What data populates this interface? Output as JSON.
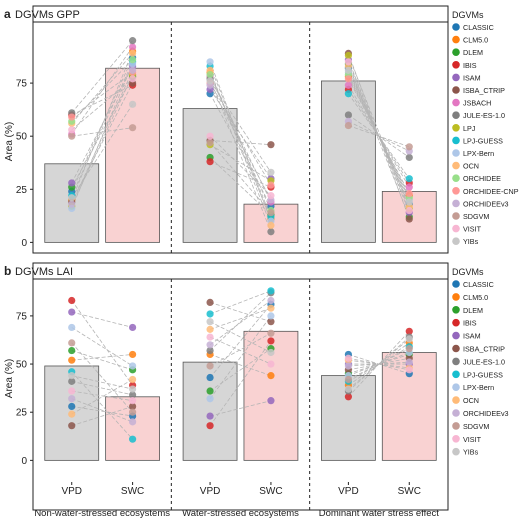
{
  "colors": {
    "vpd_bar": "#d6d6d6",
    "swc_bar": "#f9d2d2",
    "bar_stroke": "#555555",
    "connector": "#b5b5b5"
  },
  "model_colors": {
    "CLASSIC": "#1f77b4",
    "CLM5.0": "#ff7f0e",
    "DLEM": "#2ca02c",
    "IBIS": "#d62728",
    "ISAM": "#9467bd",
    "ISBA_CTRIP": "#8c564b",
    "JSBACH": "#e377c2",
    "JULE-ES-1.0": "#7f7f7f",
    "LPJ": "#bcbd22",
    "LPJ-GUESS": "#17becf",
    "LPX-Bern": "#aec7e8",
    "OCN": "#ffbb78",
    "ORCHIDEE": "#98df8a",
    "ORCHIDEE-CNP": "#ff9896",
    "ORCHIDEEv3": "#c5b0d5",
    "SDGVM": "#c49c94",
    "VISIT": "#f7b6d2",
    "YIBs": "#c7c7c7"
  },
  "group_labels": [
    "Non-water-stressed ecosystems",
    "Water-stressed ecosystems",
    "Dominant water stress effect"
  ],
  "chart_data": [
    {
      "type": "bar",
      "panel_letter": "a",
      "title": "DGVMs GPP",
      "ylabel": "Area (%)",
      "ylim": [
        -5,
        100
      ],
      "yticks": [
        0,
        25,
        50,
        75
      ],
      "categories": [
        "VPD",
        "SWC"
      ],
      "legend_title": "DGVMs",
      "legend": [
        "CLASSIC",
        "CLM5.0",
        "DLEM",
        "IBIS",
        "ISAM",
        "ISBA_CTRIP",
        "JSBACH",
        "JULE-ES-1.0",
        "LPJ",
        "LPJ-GUESS",
        "LPX-Bern",
        "OCN",
        "ORCHIDEE",
        "ORCHIDEE-CNP",
        "ORCHIDEEv3",
        "SDGVM",
        "VISIT",
        "YIBs"
      ],
      "groups": [
        {
          "name": "Non-water-stressed ecosystems",
          "bar_values": [
            37,
            82
          ],
          "vpd": [
            24,
            20,
            26,
            60,
            28,
            19,
            51,
            61,
            17,
            22,
            16,
            56,
            57,
            59,
            18,
            50,
            53,
            21
          ],
          "swc": [
            87,
            90,
            78,
            74,
            83,
            75,
            92,
            95,
            79,
            85,
            84,
            89,
            86,
            80,
            81,
            54,
            77,
            65
          ]
        },
        {
          "name": "Water-stressed ecosystems",
          "bar_values": [
            63,
            18
          ],
          "vpd": [
            70,
            80,
            40,
            38,
            72,
            48,
            78,
            77,
            46,
            83,
            85,
            81,
            79,
            75,
            74,
            47,
            50,
            76
          ],
          "swc": [
            17,
            11,
            13,
            26,
            30,
            46,
            19,
            5,
            29,
            12,
            10,
            8,
            15,
            27,
            20,
            14,
            22,
            33
          ]
        },
        {
          "name": "Dominant water stress effect",
          "bar_values": [
            76,
            24
          ],
          "vpd": [
            82,
            78,
            84,
            72,
            86,
            89,
            74,
            60,
            88,
            70,
            80,
            83,
            79,
            77,
            57,
            55,
            85,
            81
          ],
          "swc": [
            18,
            22,
            12,
            28,
            14,
            11,
            26,
            40,
            16,
            30,
            20,
            17,
            21,
            23,
            43,
            45,
            15,
            19
          ]
        }
      ]
    },
    {
      "type": "bar",
      "panel_letter": "b",
      "title": "DGVMs LAI",
      "ylabel": "Area (%)",
      "ylim": [
        -5,
        90
      ],
      "yticks": [
        0,
        25,
        50,
        75
      ],
      "categories": [
        "VPD",
        "SWC"
      ],
      "legend_title": "DGVMs",
      "legend": [
        "CLASSIC",
        "CLM5.0",
        "DLEM",
        "IBIS",
        "ISAM",
        "ISBA_CTRIP",
        "JULE-ES-1.0",
        "LPJ-GUESS",
        "LPX-Bern",
        "OCN",
        "ORCHIDEEv3",
        "SDGVM",
        "VISIT",
        "YIBs"
      ],
      "groups": [
        {
          "name": "Non-water-stressed ecosystems",
          "bar_values": [
            49,
            33
          ],
          "vpd": [
            28,
            52,
            57,
            83,
            77,
            18,
            41,
            46,
            69,
            24,
            32,
            61,
            36,
            44
          ],
          "swc": [
            23,
            55,
            47,
            39,
            69,
            28,
            34,
            11,
            49,
            42,
            20,
            25,
            31,
            37
          ]
        },
        {
          "name": "Water-stressed ecosystems",
          "bar_values": [
            51,
            67
          ],
          "vpd": [
            43,
            55,
            36,
            18,
            23,
            82,
            57,
            76,
            32,
            68,
            60,
            49,
            64,
            72
          ],
          "swc": [
            81,
            44,
            58,
            62,
            31,
            72,
            87,
            88,
            75,
            79,
            83,
            66,
            50,
            56
          ]
        },
        {
          "name": "Dominant water stress effect",
          "bar_values": [
            44,
            56
          ],
          "vpd": [
            55,
            39,
            45,
            33,
            50,
            47,
            36,
            41,
            44,
            52,
            49,
            42,
            53,
            37
          ],
          "swc": [
            45,
            61,
            55,
            67,
            50,
            53,
            64,
            59,
            56,
            48,
            51,
            58,
            47,
            63
          ]
        }
      ]
    }
  ]
}
